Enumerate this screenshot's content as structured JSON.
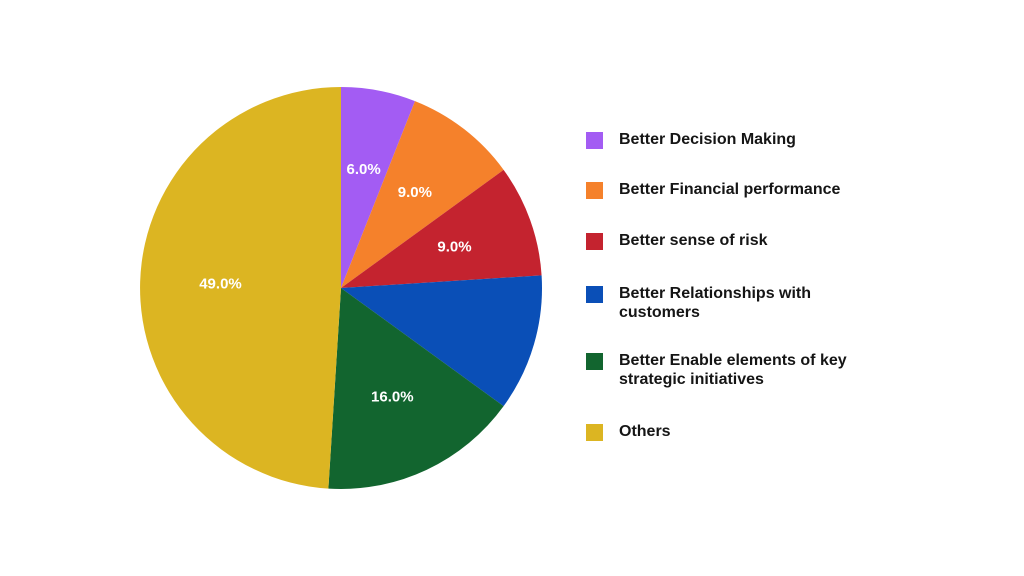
{
  "chart_data": {
    "type": "pie",
    "title": "",
    "start_angle_deg": 0,
    "direction": "clockwise",
    "slices": [
      {
        "label": "Better Decision Making",
        "value": 6.0,
        "display": "6.0%",
        "color": "#a35cf3"
      },
      {
        "label": "Better Financial performance",
        "value": 9.0,
        "display": "9.0%",
        "color": "#f5812b"
      },
      {
        "label": "Better sense of risk",
        "value": 9.0,
        "display": "9.0%",
        "color": "#c4232f"
      },
      {
        "label": "Better Relationships with customers",
        "value": 11.0,
        "display": "",
        "color": "#0a4fb7"
      },
      {
        "label": "Better Enable elements of key strategic initiatives",
        "value": 16.0,
        "display": "16.0%",
        "color": "#12652f"
      },
      {
        "label": "Others",
        "value": 49.0,
        "display": "49.0%",
        "color": "#dcb522"
      }
    ],
    "legend": {
      "position": "right",
      "items": [
        {
          "label": "Better Decision Making",
          "color": "#a35cf3"
        },
        {
          "label": "Better Financial performance",
          "color": "#f5812b"
        },
        {
          "label": "Better sense of risk",
          "color": "#c4232f"
        },
        {
          "label": "Better Relationships with customers",
          "color": "#0a4fb7"
        },
        {
          "label": "Better Enable elements of key strategic initiatives",
          "color": "#12652f"
        },
        {
          "label": "Others",
          "color": "#dcb522"
        }
      ]
    }
  }
}
